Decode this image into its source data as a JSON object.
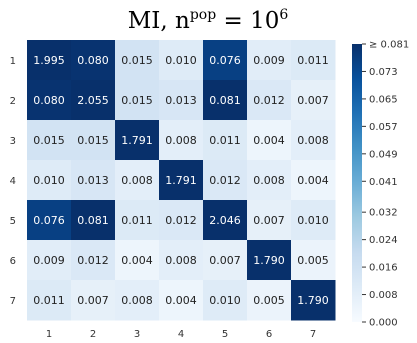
{
  "chart_data": {
    "type": "heatmap",
    "title": {
      "base": "MI, n",
      "sup": "pop",
      "rest": " = 10",
      "exp": "6"
    },
    "x_categories": [
      "1",
      "2",
      "3",
      "4",
      "5",
      "6",
      "7"
    ],
    "y_categories": [
      "1",
      "2",
      "3",
      "4",
      "5",
      "6",
      "7"
    ],
    "values": [
      [
        1.995,
        0.08,
        0.015,
        0.01,
        0.076,
        0.009,
        0.011
      ],
      [
        0.08,
        2.055,
        0.015,
        0.013,
        0.081,
        0.012,
        0.007
      ],
      [
        0.015,
        0.015,
        1.791,
        0.008,
        0.011,
        0.004,
        0.008
      ],
      [
        0.01,
        0.013,
        0.008,
        1.791,
        0.012,
        0.008,
        0.004
      ],
      [
        0.076,
        0.081,
        0.011,
        0.012,
        2.046,
        0.007,
        0.01
      ],
      [
        0.009,
        0.012,
        0.004,
        0.008,
        0.007,
        1.79,
        0.005
      ],
      [
        0.011,
        0.007,
        0.008,
        0.004,
        0.01,
        0.005,
        1.79
      ]
    ],
    "value_labels": [
      [
        "1.995",
        "0.080",
        "0.015",
        "0.010",
        "0.076",
        "0.009",
        "0.011"
      ],
      [
        "0.080",
        "2.055",
        "0.015",
        "0.013",
        "0.081",
        "0.012",
        "0.007"
      ],
      [
        "0.015",
        "0.015",
        "1.791",
        "0.008",
        "0.011",
        "0.004",
        "0.008"
      ],
      [
        "0.010",
        "0.013",
        "0.008",
        "1.791",
        "0.012",
        "0.008",
        "0.004"
      ],
      [
        "0.076",
        "0.081",
        "0.011",
        "0.012",
        "2.046",
        "0.007",
        "0.010"
      ],
      [
        "0.009",
        "0.012",
        "0.004",
        "0.008",
        "0.007",
        "1.790",
        "0.005"
      ],
      [
        "0.011",
        "0.007",
        "0.008",
        "0.004",
        "0.010",
        "0.005",
        "1.790"
      ]
    ],
    "colorbar": {
      "min": 0.0,
      "max": 0.081,
      "colormap": "Blues",
      "ticks": [
        0.0,
        0.008,
        0.016,
        0.024,
        0.032,
        0.041,
        0.049,
        0.057,
        0.065,
        0.073,
        0.081
      ],
      "tick_labels": [
        "0.000",
        "0.008",
        "0.016",
        "0.024",
        "0.032",
        "0.041",
        "0.049",
        "0.057",
        "0.065",
        "0.073",
        "≥ 0.081"
      ]
    }
  }
}
